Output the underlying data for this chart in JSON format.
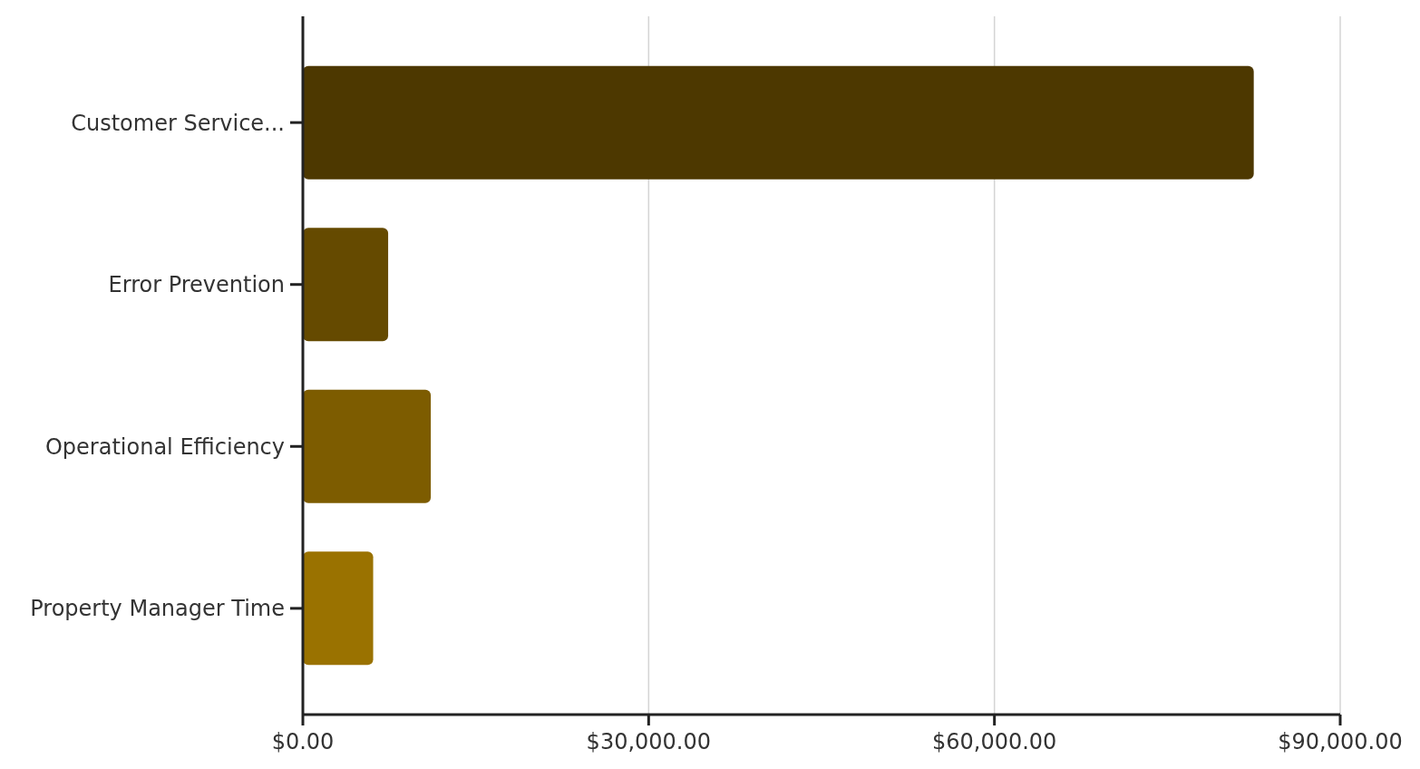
{
  "chart_data": {
    "type": "bar",
    "orientation": "horizontal",
    "categories": [
      "Customer Service...",
      "Error Prevention",
      "Operational Efficiency",
      "Property Manager Time"
    ],
    "values": [
      82500,
      7400,
      11100,
      6100
    ],
    "colors": [
      "#4d3800",
      "#654a00",
      "#7d5c00",
      "#9a7200"
    ],
    "xlim": [
      0,
      90000
    ],
    "xticks": [
      {
        "value": 0,
        "label": "$0.00"
      },
      {
        "value": 30000,
        "label": "$30,000.00"
      },
      {
        "value": 60000,
        "label": "$60,000.00"
      },
      {
        "value": 90000,
        "label": "$90,000.00"
      }
    ],
    "grid": "x"
  }
}
